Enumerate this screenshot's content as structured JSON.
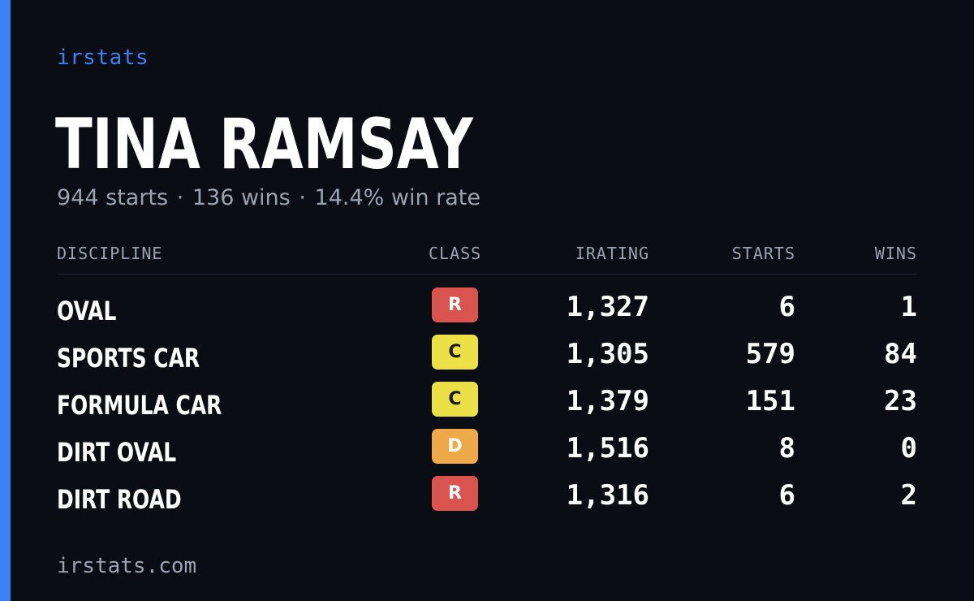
{
  "brand": "irstats",
  "driver": {
    "name": "TINA RAMSAY",
    "starts_text": "944 starts",
    "wins_text": "136 wins",
    "win_rate_text": "14.4% win rate",
    "separator": "·"
  },
  "table": {
    "headers": {
      "discipline": "DISCIPLINE",
      "class": "CLASS",
      "irating": "IRATING",
      "starts": "STARTS",
      "wins": "WINS"
    },
    "rows": [
      {
        "discipline": "OVAL",
        "class": "R",
        "class_color": "#d9534f",
        "class_text_color": "#ffffff",
        "irating": "1,327",
        "starts": "6",
        "wins": "1"
      },
      {
        "discipline": "SPORTS CAR",
        "class": "C",
        "class_color": "#ece047",
        "class_text_color": "#1a1a1a",
        "irating": "1,305",
        "starts": "579",
        "wins": "84"
      },
      {
        "discipline": "FORMULA CAR",
        "class": "C",
        "class_color": "#ece047",
        "class_text_color": "#1a1a1a",
        "irating": "1,379",
        "starts": "151",
        "wins": "23"
      },
      {
        "discipline": "DIRT OVAL",
        "class": "D",
        "class_color": "#eea948",
        "class_text_color": "#ffffff",
        "irating": "1,516",
        "starts": "8",
        "wins": "0"
      },
      {
        "discipline": "DIRT ROAD",
        "class": "R",
        "class_color": "#d9534f",
        "class_text_color": "#ffffff",
        "irating": "1,316",
        "starts": "6",
        "wins": "2"
      }
    ]
  },
  "footer": "irstats.com",
  "colors": {
    "accent": "#3b82f6",
    "background": "#0a0d14",
    "muted": "#9aa3b2"
  }
}
